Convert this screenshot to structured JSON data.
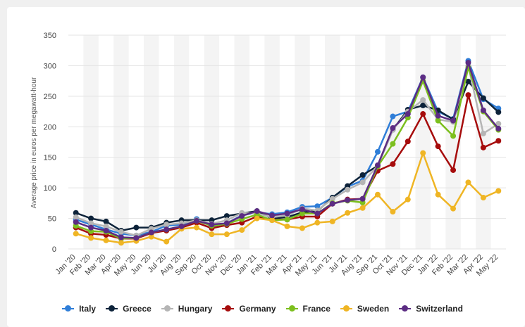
{
  "chart_data": {
    "type": "line",
    "ylabel": "Average price in euros per megawatt-hour",
    "xlabel": "",
    "ylim": [
      0,
      350
    ],
    "yticks": [
      0,
      50,
      100,
      150,
      200,
      250,
      300,
      350
    ],
    "grid": "horizontal",
    "legend_placement": "bottom",
    "categories": [
      "Jan '20",
      "Feb '20",
      "Mar '20",
      "Apr '20",
      "May '20",
      "Jun '20",
      "Jul '20",
      "Aug '20",
      "Sep '20",
      "Oct '20",
      "Nov '20",
      "Dec '20",
      "Jan '21",
      "Feb '21",
      "Mar '21",
      "Apr '21",
      "May '21",
      "Jun '21",
      "Jul '21",
      "Aug '21",
      "Sep '21",
      "Oct '21",
      "Nov '21",
      "Dec '21",
      "Jan '22",
      "Feb '22",
      "Mar '22",
      "Apr '22",
      "May '22"
    ],
    "series": [
      {
        "name": "Italy",
        "color": "#2f7ed8",
        "values": [
          48,
          40,
          32,
          25,
          22,
          28,
          38,
          40,
          49,
          37,
          42,
          55,
          60,
          57,
          60,
          69,
          70,
          84,
          102,
          112,
          159,
          217,
          225,
          281,
          225,
          213,
          308,
          245,
          230
        ]
      },
      {
        "name": "Greece",
        "color": "#0d233a",
        "values": [
          59,
          50,
          45,
          30,
          35,
          35,
          43,
          47,
          47,
          47,
          54,
          58,
          62,
          50,
          52,
          60,
          62,
          84,
          103,
          121,
          136,
          195,
          228,
          235,
          227,
          212,
          274,
          247,
          224
        ]
      },
      {
        "name": "Hungary",
        "color": "#b5b5b5",
        "values": [
          52,
          42,
          37,
          28,
          22,
          33,
          40,
          42,
          47,
          41,
          47,
          59,
          58,
          52,
          55,
          66,
          63,
          82,
          97,
          109,
          136,
          195,
          225,
          244,
          212,
          208,
          300,
          189,
          205
        ]
      },
      {
        "name": "Germany",
        "color": "#a60c0c",
        "values": [
          35,
          25,
          23,
          17,
          17,
          26,
          30,
          35,
          43,
          34,
          39,
          43,
          53,
          48,
          48,
          53,
          53,
          74,
          81,
          82,
          128,
          139,
          176,
          221,
          168,
          129,
          252,
          166,
          177
        ]
      },
      {
        "name": "France",
        "color": "#7cbf1e",
        "values": [
          38,
          29,
          28,
          17,
          18,
          27,
          32,
          37,
          46,
          38,
          41,
          49,
          56,
          47,
          48,
          58,
          58,
          75,
          79,
          76,
          135,
          172,
          215,
          275,
          210,
          185,
          297,
          225,
          195
        ]
      },
      {
        "name": "Sweden",
        "color": "#efb524",
        "values": [
          25,
          18,
          14,
          10,
          13,
          20,
          12,
          33,
          35,
          24,
          24,
          31,
          50,
          47,
          37,
          34,
          43,
          45,
          59,
          67,
          89,
          61,
          81,
          157,
          89,
          66,
          109,
          84,
          95
        ]
      },
      {
        "name": "Switzerland",
        "color": "#5c2c83",
        "values": [
          44,
          35,
          30,
          19,
          18,
          27,
          32,
          37,
          46,
          40,
          42,
          54,
          62,
          55,
          58,
          65,
          58,
          74,
          80,
          82,
          137,
          198,
          221,
          281,
          218,
          210,
          305,
          227,
          197
        ]
      }
    ]
  }
}
